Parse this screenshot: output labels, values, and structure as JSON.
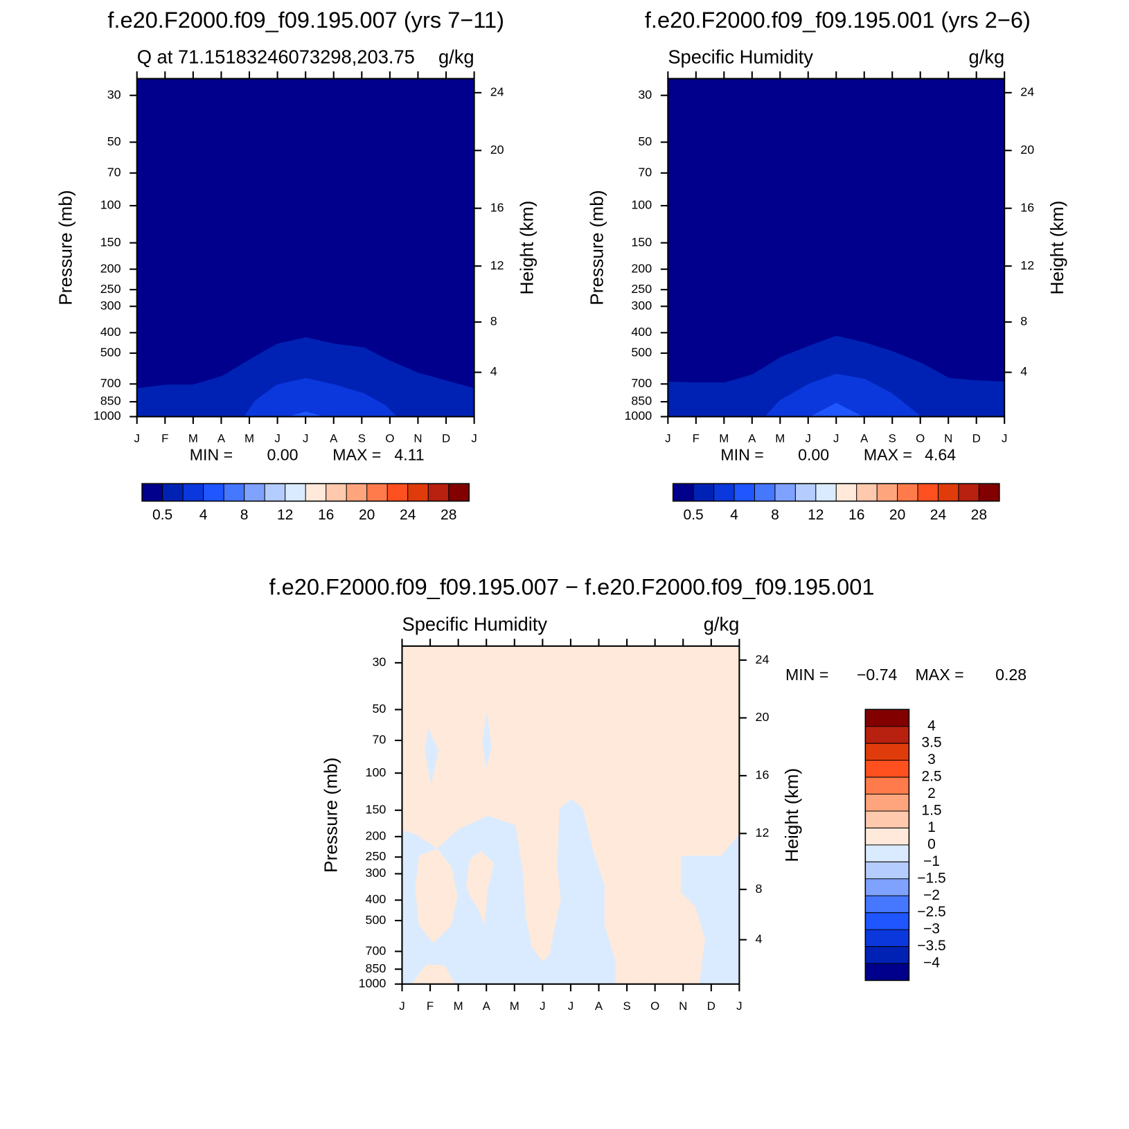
{
  "chart_data": [
    {
      "type": "contour",
      "title": "f.e20.F2000.f09_f09.195.007 (yrs 7−11)",
      "left_string": "Q at 71.15183246073298,203.75",
      "right_string": "g/kg",
      "ylabel": "Pressure (mb)",
      "y2label": "Height (km)",
      "categories": [
        "J",
        "F",
        "M",
        "A",
        "M",
        "J",
        "J",
        "A",
        "S",
        "O",
        "N",
        "D",
        "J"
      ],
      "log_y": true,
      "ylim": [
        1000,
        25
      ],
      "yticks": [
        30,
        50,
        70,
        100,
        150,
        200,
        250,
        300,
        400,
        500,
        700,
        850,
        1000
      ],
      "y2ticks": [
        4,
        8,
        12,
        16,
        20,
        24
      ],
      "stats": [
        "MIN =",
        "0.00",
        "MAX =",
        "4.11"
      ],
      "colorbar": {
        "orientation": "horizontal",
        "levels": [
          0.5,
          2,
          4,
          6,
          8,
          10,
          12,
          14,
          16,
          18,
          20,
          22,
          24,
          26,
          28
        ],
        "colors": [
          "#00008c",
          "#0022b4",
          "#0a38dc",
          "#1f56ff",
          "#4577ff",
          "#7fa2ff",
          "#b5ccff",
          "#daebff",
          "#ffe9da",
          "#ffc9ad",
          "#ffa57d",
          "#ff7b4b",
          "#ff501f",
          "#e03b0a",
          "#b82010",
          "#820000"
        ]
      }
    },
    {
      "type": "contour",
      "title": "f.e20.F2000.f09_f09.195.001 (yrs 2−6)",
      "left_string": "Specific Humidity",
      "right_string": "g/kg",
      "ylabel": "Pressure (mb)",
      "y2label": "Height (km)",
      "categories": [
        "J",
        "F",
        "M",
        "A",
        "M",
        "J",
        "J",
        "A",
        "S",
        "O",
        "N",
        "D",
        "J"
      ],
      "log_y": true,
      "ylim": [
        1000,
        25
      ],
      "yticks": [
        30,
        50,
        70,
        100,
        150,
        200,
        250,
        300,
        400,
        500,
        700,
        850,
        1000
      ],
      "y2ticks": [
        4,
        8,
        12,
        16,
        20,
        24
      ],
      "stats": [
        "MIN =",
        "0.00",
        "MAX =",
        "4.64"
      ],
      "colorbar": {
        "orientation": "horizontal",
        "levels": [
          0.5,
          2,
          4,
          6,
          8,
          10,
          12,
          14,
          16,
          18,
          20,
          22,
          24,
          26,
          28
        ],
        "colors": [
          "#00008c",
          "#0022b4",
          "#0a38dc",
          "#1f56ff",
          "#4577ff",
          "#7fa2ff",
          "#b5ccff",
          "#daebff",
          "#ffe9da",
          "#ffc9ad",
          "#ffa57d",
          "#ff7b4b",
          "#ff501f",
          "#e03b0a",
          "#b82010",
          "#820000"
        ]
      }
    },
    {
      "type": "contour",
      "title": "f.e20.F2000.f09_f09.195.007 − f.e20.F2000.f09_f09.195.001",
      "left_string": "Specific Humidity",
      "right_string": "g/kg",
      "ylabel": "Pressure (mb)",
      "y2label": "Height (km)",
      "categories": [
        "J",
        "F",
        "M",
        "A",
        "M",
        "J",
        "J",
        "A",
        "S",
        "O",
        "N",
        "D",
        "J"
      ],
      "log_y": true,
      "ylim": [
        1000,
        25
      ],
      "yticks": [
        30,
        50,
        70,
        100,
        150,
        200,
        250,
        300,
        400,
        500,
        700,
        850,
        1000
      ],
      "y2ticks": [
        4,
        8,
        12,
        16,
        20,
        24
      ],
      "stats": [
        "MIN =",
        "−0.74",
        "MAX =",
        "0.28"
      ],
      "colorbar": {
        "orientation": "vertical",
        "levels": [
          {
            "value": -4,
            "label": "−4"
          },
          {
            "value": -3.5,
            "label": "−3.5"
          },
          {
            "value": -3,
            "label": "−3"
          },
          {
            "value": -2.5,
            "label": "−2.5"
          },
          {
            "value": -2,
            "label": "−2"
          },
          {
            "value": -1.5,
            "label": "−1.5"
          },
          {
            "value": -1,
            "label": "−1"
          },
          0,
          1,
          1.5,
          2,
          2.5,
          3,
          3.5,
          4
        ],
        "colors": [
          "#00008c",
          "#0022b4",
          "#0a38dc",
          "#1f56ff",
          "#4577ff",
          "#7fa2ff",
          "#b5ccff",
          "#daebff",
          "#ffe9da",
          "#ffc9ad",
          "#ffa57d",
          "#ff7b4b",
          "#ff501f",
          "#e03b0a",
          "#b82010",
          "#820000"
        ]
      }
    }
  ]
}
